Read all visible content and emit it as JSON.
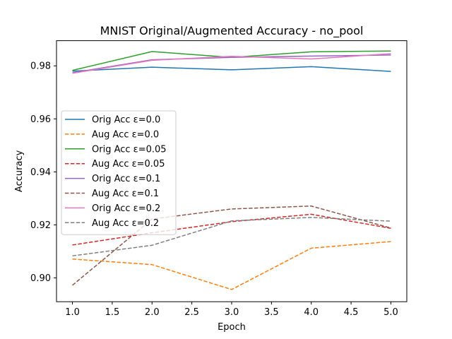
{
  "chart_data": {
    "type": "line",
    "title": "MNIST Original/Augmented Accuracy - no_pool",
    "xlabel": "Epoch",
    "ylabel": "Accuracy",
    "xlim": [
      0.8,
      5.2
    ],
    "ylim": [
      0.891,
      0.9895
    ],
    "xticks": [
      1.0,
      1.5,
      2.0,
      2.5,
      3.0,
      3.5,
      4.0,
      4.5,
      5.0
    ],
    "xtick_labels": [
      "1.0",
      "1.5",
      "2.0",
      "2.5",
      "3.0",
      "3.5",
      "4.0",
      "4.5",
      "5.0"
    ],
    "yticks": [
      0.9,
      0.92,
      0.94,
      0.96,
      0.98
    ],
    "ytick_labels": [
      "0.90",
      "0.92",
      "0.94",
      "0.96",
      "0.98"
    ],
    "grid": false,
    "legend_position": "center-left",
    "x": [
      1,
      2,
      3,
      4,
      5
    ],
    "series": [
      {
        "name": "Orig Acc ε=0.0",
        "style": "solid",
        "color": "#1f77b4",
        "values": [
          0.978,
          0.9795,
          0.9785,
          0.9797,
          0.9779
        ]
      },
      {
        "name": "Aug Acc ε=0.0",
        "style": "dashed",
        "color": "#ff7f0e",
        "values": [
          0.9071,
          0.905,
          0.8956,
          0.9112,
          0.9137
        ]
      },
      {
        "name": "Orig Acc ε=0.05",
        "style": "solid",
        "color": "#2ca02c",
        "values": [
          0.9783,
          0.9854,
          0.9832,
          0.9853,
          0.9856
        ]
      },
      {
        "name": "Aug Acc ε=0.05",
        "style": "dashed",
        "color": "#d62728",
        "values": [
          0.9124,
          0.917,
          0.9212,
          0.924,
          0.9187
        ]
      },
      {
        "name": "Orig Acc ε=0.1",
        "style": "solid",
        "color": "#9467bd",
        "values": [
          0.9774,
          0.9823,
          0.9832,
          0.9837,
          0.9841
        ]
      },
      {
        "name": "Aug Acc ε=0.1",
        "style": "dashed",
        "color": "#8c564b",
        "values": [
          0.8972,
          0.9222,
          0.926,
          0.9271,
          0.9188
        ]
      },
      {
        "name": "Orig Acc ε=0.2",
        "style": "solid",
        "color": "#e377c2",
        "values": [
          0.9772,
          0.9821,
          0.9836,
          0.9826,
          0.9846
        ]
      },
      {
        "name": "Aug Acc ε=0.2",
        "style": "dashed",
        "color": "#7f7f7f",
        "values": [
          0.9083,
          0.9123,
          0.9215,
          0.9228,
          0.9214
        ]
      }
    ]
  }
}
